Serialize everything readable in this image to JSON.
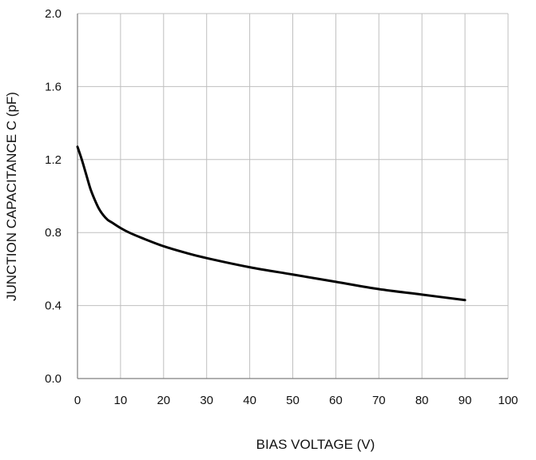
{
  "chart_data": {
    "type": "line",
    "title": "",
    "xlabel": "BIAS  VOLTAGE (V)",
    "ylabel": "JUNCTION  CAPACITANCE C (pF)",
    "xlim": [
      0,
      100
    ],
    "ylim": [
      0.0,
      2.0
    ],
    "xticks": [
      "0",
      "10",
      "20",
      "30",
      "40",
      "50",
      "60",
      "70",
      "80",
      "90",
      "100"
    ],
    "yticks": [
      "0.0",
      "0.4",
      "0.8",
      "1.2",
      "1.6",
      "2.0"
    ],
    "grid": true,
    "legend": "none",
    "colors": {
      "line": "#000000",
      "grid": "#bfbfbf",
      "axis": "#7f7f7f"
    },
    "series": [
      {
        "x": [
          0,
          1,
          2,
          3,
          4,
          5,
          6,
          7,
          8,
          10,
          12,
          15,
          20,
          25,
          30,
          40,
          50,
          60,
          70,
          80,
          90
        ],
        "y": [
          1.27,
          1.2,
          1.12,
          1.04,
          0.98,
          0.93,
          0.895,
          0.87,
          0.855,
          0.825,
          0.8,
          0.77,
          0.725,
          0.69,
          0.66,
          0.61,
          0.57,
          0.53,
          0.49,
          0.46,
          0.43
        ]
      }
    ]
  }
}
